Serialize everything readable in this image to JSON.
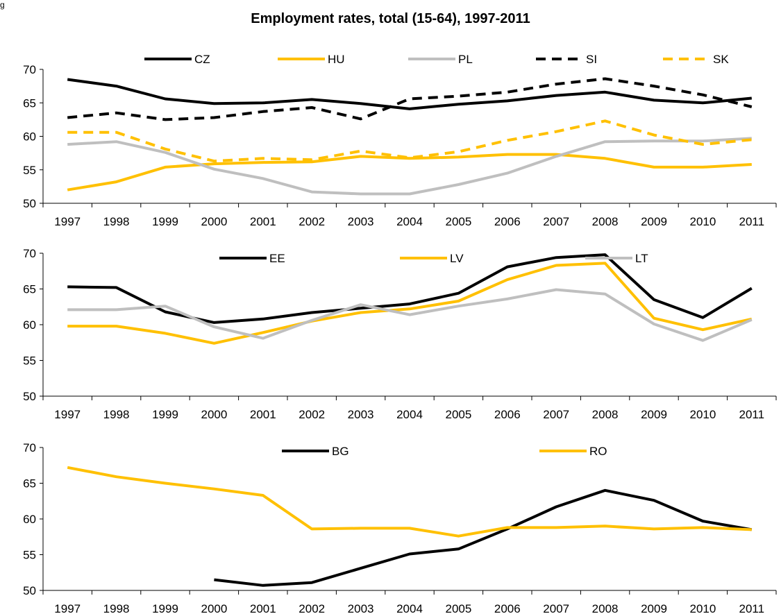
{
  "corner_mark": "g",
  "chart_title": "Employment rates, total (15-64), 1997-2011",
  "chart_data": [
    {
      "type": "line",
      "title": "Employment rates, total (15-64), 1997-2011",
      "x": [
        "1997",
        "1998",
        "1999",
        "2000",
        "2001",
        "2002",
        "2003",
        "2004",
        "2005",
        "2006",
        "2007",
        "2008",
        "2009",
        "2010",
        "2011"
      ],
      "ylim": [
        50,
        70
      ],
      "yticks": [
        50,
        55,
        60,
        65,
        70
      ],
      "grid": false,
      "legend": "top",
      "series": [
        {
          "name": "CZ",
          "color": "#000000",
          "dash": false,
          "values": [
            68.5,
            67.5,
            65.6,
            64.9,
            65.0,
            65.5,
            64.9,
            64.1,
            64.8,
            65.3,
            66.1,
            66.6,
            65.4,
            65.0,
            65.7
          ]
        },
        {
          "name": "HU",
          "color": "#FFC000",
          "dash": false,
          "values": [
            52.0,
            53.2,
            55.4,
            55.9,
            56.1,
            56.2,
            57.0,
            56.7,
            56.9,
            57.3,
            57.3,
            56.7,
            55.4,
            55.4,
            55.8
          ]
        },
        {
          "name": "PL",
          "color": "#BFBFBF",
          "dash": false,
          "values": [
            58.8,
            59.2,
            57.6,
            55.1,
            53.7,
            51.7,
            51.4,
            51.4,
            52.8,
            54.5,
            57.0,
            59.2,
            59.3,
            59.3,
            59.7
          ]
        },
        {
          "name": "SI",
          "color": "#000000",
          "dash": true,
          "values": [
            62.8,
            63.5,
            62.5,
            62.8,
            63.7,
            64.3,
            62.6,
            65.6,
            66.0,
            66.6,
            67.8,
            68.6,
            67.5,
            66.2,
            64.4
          ]
        },
        {
          "name": "SK",
          "color": "#FFC000",
          "dash": true,
          "values": [
            60.6,
            60.6,
            58.1,
            56.3,
            56.7,
            56.5,
            57.8,
            56.8,
            57.7,
            59.4,
            60.7,
            62.3,
            60.2,
            58.8,
            59.5
          ]
        }
      ]
    },
    {
      "type": "line",
      "x": [
        "1997",
        "1998",
        "1999",
        "2000",
        "2001",
        "2002",
        "2003",
        "2004",
        "2005",
        "2006",
        "2007",
        "2008",
        "2009",
        "2010",
        "2011"
      ],
      "ylim": [
        50,
        70
      ],
      "yticks": [
        50,
        55,
        60,
        65,
        70
      ],
      "grid": false,
      "legend": "top",
      "series": [
        {
          "name": "EE",
          "color": "#000000",
          "dash": false,
          "values": [
            65.3,
            65.2,
            61.8,
            60.3,
            60.8,
            61.7,
            62.3,
            62.9,
            64.4,
            68.1,
            69.4,
            69.8,
            63.5,
            61.0,
            65.1
          ]
        },
        {
          "name": "LV",
          "color": "#FFC000",
          "dash": false,
          "values": [
            59.8,
            59.8,
            58.8,
            57.4,
            58.9,
            60.5,
            61.7,
            62.2,
            63.3,
            66.3,
            68.3,
            68.6,
            60.9,
            59.3,
            60.8
          ]
        },
        {
          "name": "LT",
          "color": "#BFBFBF",
          "dash": false,
          "values": [
            62.1,
            62.1,
            62.6,
            59.7,
            58.1,
            60.6,
            62.8,
            61.4,
            62.6,
            63.6,
            64.9,
            64.3,
            60.1,
            57.8,
            60.7
          ]
        }
      ]
    },
    {
      "type": "line",
      "x": [
        "1997",
        "1998",
        "1999",
        "2000",
        "2001",
        "2002",
        "2003",
        "2004",
        "2005",
        "2006",
        "2007",
        "2008",
        "2009",
        "2010",
        "2011"
      ],
      "ylim": [
        50,
        70
      ],
      "yticks": [
        50,
        55,
        60,
        65,
        70
      ],
      "grid": false,
      "legend": "top",
      "series": [
        {
          "name": "BG",
          "color": "#000000",
          "dash": false,
          "values": [
            null,
            null,
            null,
            51.5,
            50.7,
            51.1,
            53.1,
            55.1,
            55.8,
            58.6,
            61.7,
            64.0,
            62.6,
            59.7,
            58.5
          ]
        },
        {
          "name": "RO",
          "color": "#FFC000",
          "dash": false,
          "values": [
            67.2,
            65.9,
            65.0,
            64.2,
            63.3,
            58.6,
            58.7,
            58.7,
            57.6,
            58.8,
            58.8,
            59.0,
            58.6,
            58.8,
            58.5
          ]
        }
      ]
    }
  ]
}
